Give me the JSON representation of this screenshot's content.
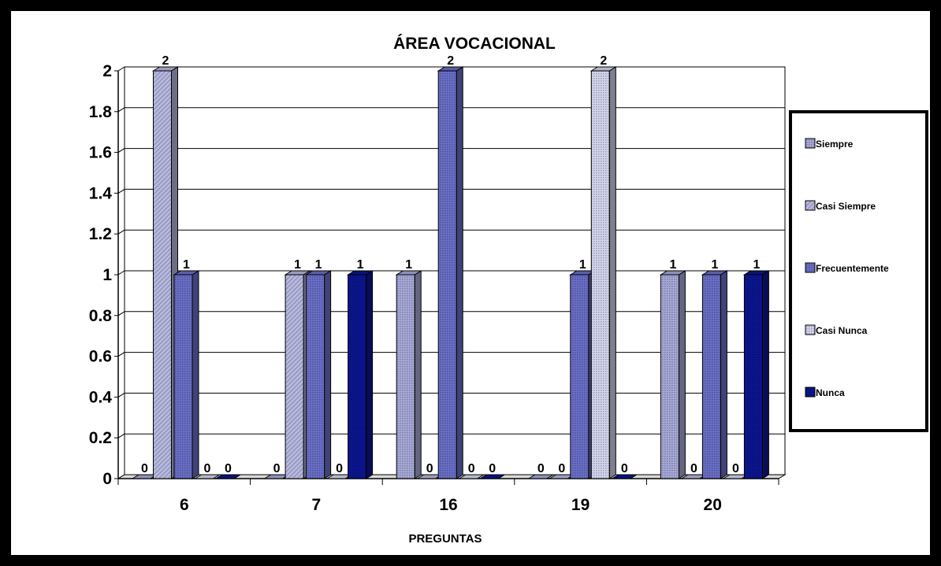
{
  "chart_data": {
    "type": "bar",
    "title": "ÁREA VOCACIONAL",
    "xlabel": "PREGUNTAS",
    "ylabel": "",
    "categories": [
      "6",
      "7",
      "16",
      "19",
      "20"
    ],
    "ylim": [
      0,
      2
    ],
    "yticks": [
      "0",
      "0.2",
      "0.4",
      "0.6",
      "0.8",
      "1",
      "1.2",
      "1.4",
      "1.6",
      "1.8",
      "2"
    ],
    "grid": true,
    "legend_position": "right",
    "series": [
      {
        "name": "Siempre",
        "values": [
          0,
          0,
          1,
          0,
          1
        ],
        "color": "#a7a9d9",
        "pattern": "dots"
      },
      {
        "name": "Casi Siempre",
        "values": [
          2,
          1,
          0,
          0,
          0
        ],
        "color": "#b6b8e0",
        "pattern": "diagonal"
      },
      {
        "name": "Frecuentemente",
        "values": [
          1,
          1,
          2,
          1,
          1
        ],
        "color": "#6a6fc8",
        "pattern": "dots"
      },
      {
        "name": "Casi Nunca",
        "values": [
          0,
          0,
          0,
          2,
          0
        ],
        "color": "#d4d6ef",
        "pattern": "dots"
      },
      {
        "name": "Nunca",
        "values": [
          0,
          1,
          0,
          0,
          1
        ],
        "color": "#0b1590",
        "pattern": "dots"
      }
    ]
  }
}
